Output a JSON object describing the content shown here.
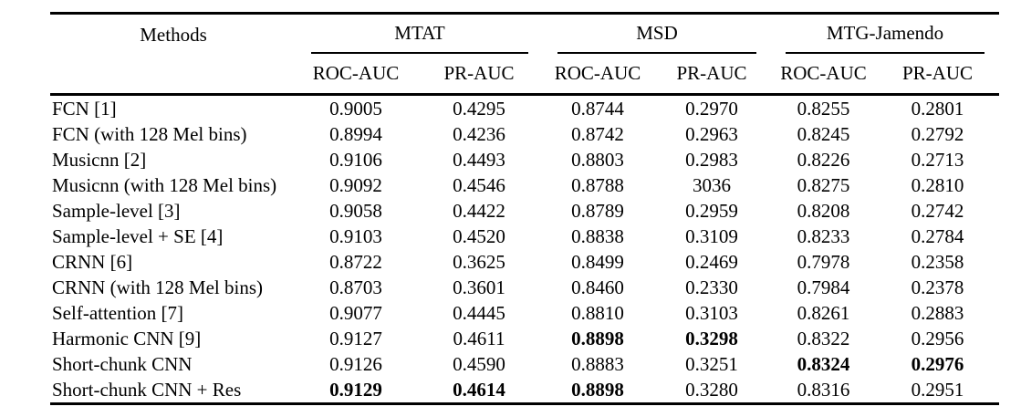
{
  "table": {
    "methods_header": "Methods",
    "group_headers": [
      "MTAT",
      "MSD",
      "MTG-Jamendo"
    ],
    "sub_headers": [
      "ROC-AUC",
      "PR-AUC",
      "ROC-AUC",
      "PR-AUC",
      "ROC-AUC",
      "PR-AUC"
    ],
    "rows": [
      {
        "method": "FCN [1]",
        "cells": [
          {
            "v": "0.9005",
            "b": false
          },
          {
            "v": "0.4295",
            "b": false
          },
          {
            "v": "0.8744",
            "b": false
          },
          {
            "v": "0.2970",
            "b": false
          },
          {
            "v": "0.8255",
            "b": false
          },
          {
            "v": "0.2801",
            "b": false
          }
        ]
      },
      {
        "method": "FCN (with 128 Mel bins)",
        "cells": [
          {
            "v": "0.8994",
            "b": false
          },
          {
            "v": "0.4236",
            "b": false
          },
          {
            "v": "0.8742",
            "b": false
          },
          {
            "v": "0.2963",
            "b": false
          },
          {
            "v": "0.8245",
            "b": false
          },
          {
            "v": "0.2792",
            "b": false
          }
        ]
      },
      {
        "method": "Musicnn [2]",
        "cells": [
          {
            "v": "0.9106",
            "b": false
          },
          {
            "v": "0.4493",
            "b": false
          },
          {
            "v": "0.8803",
            "b": false
          },
          {
            "v": "0.2983",
            "b": false
          },
          {
            "v": "0.8226",
            "b": false
          },
          {
            "v": "0.2713",
            "b": false
          }
        ]
      },
      {
        "method": "Musicnn (with 128 Mel bins)",
        "cells": [
          {
            "v": "0.9092",
            "b": false
          },
          {
            "v": "0.4546",
            "b": false
          },
          {
            "v": "0.8788",
            "b": false
          },
          {
            "v": "3036",
            "b": false
          },
          {
            "v": "0.8275",
            "b": false
          },
          {
            "v": "0.2810",
            "b": false
          }
        ]
      },
      {
        "method": "Sample-level [3]",
        "cells": [
          {
            "v": "0.9058",
            "b": false
          },
          {
            "v": "0.4422",
            "b": false
          },
          {
            "v": "0.8789",
            "b": false
          },
          {
            "v": "0.2959",
            "b": false
          },
          {
            "v": "0.8208",
            "b": false
          },
          {
            "v": "0.2742",
            "b": false
          }
        ]
      },
      {
        "method": "Sample-level + SE [4]",
        "cells": [
          {
            "v": "0.9103",
            "b": false
          },
          {
            "v": "0.4520",
            "b": false
          },
          {
            "v": "0.8838",
            "b": false
          },
          {
            "v": "0.3109",
            "b": false
          },
          {
            "v": "0.8233",
            "b": false
          },
          {
            "v": "0.2784",
            "b": false
          }
        ]
      },
      {
        "method": "CRNN [6]",
        "cells": [
          {
            "v": "0.8722",
            "b": false
          },
          {
            "v": "0.3625",
            "b": false
          },
          {
            "v": "0.8499",
            "b": false
          },
          {
            "v": "0.2469",
            "b": false
          },
          {
            "v": "0.7978",
            "b": false
          },
          {
            "v": "0.2358",
            "b": false
          }
        ]
      },
      {
        "method": "CRNN (with 128 Mel bins)",
        "cells": [
          {
            "v": "0.8703",
            "b": false
          },
          {
            "v": "0.3601",
            "b": false
          },
          {
            "v": "0.8460",
            "b": false
          },
          {
            "v": "0.2330",
            "b": false
          },
          {
            "v": "0.7984",
            "b": false
          },
          {
            "v": "0.2378",
            "b": false
          }
        ]
      },
      {
        "method": "Self-attention [7]",
        "cells": [
          {
            "v": "0.9077",
            "b": false
          },
          {
            "v": "0.4445",
            "b": false
          },
          {
            "v": "0.8810",
            "b": false
          },
          {
            "v": "0.3103",
            "b": false
          },
          {
            "v": "0.8261",
            "b": false
          },
          {
            "v": "0.2883",
            "b": false
          }
        ]
      },
      {
        "method": "Harmonic CNN [9]",
        "cells": [
          {
            "v": "0.9127",
            "b": false
          },
          {
            "v": "0.4611",
            "b": false
          },
          {
            "v": "0.8898",
            "b": true
          },
          {
            "v": "0.3298",
            "b": true
          },
          {
            "v": "0.8322",
            "b": false
          },
          {
            "v": "0.2956",
            "b": false
          }
        ]
      },
      {
        "method": "Short-chunk CNN",
        "cells": [
          {
            "v": "0.9126",
            "b": false
          },
          {
            "v": "0.4590",
            "b": false
          },
          {
            "v": "0.8883",
            "b": false
          },
          {
            "v": "0.3251",
            "b": false
          },
          {
            "v": "0.8324",
            "b": true
          },
          {
            "v": "0.2976",
            "b": true
          }
        ]
      },
      {
        "method": "Short-chunk CNN + Res",
        "cells": [
          {
            "v": "0.9129",
            "b": true
          },
          {
            "v": "0.4614",
            "b": true
          },
          {
            "v": "0.8898",
            "b": true
          },
          {
            "v": "0.3280",
            "b": false
          },
          {
            "v": "0.8316",
            "b": false
          },
          {
            "v": "0.2951",
            "b": false
          }
        ]
      }
    ]
  }
}
